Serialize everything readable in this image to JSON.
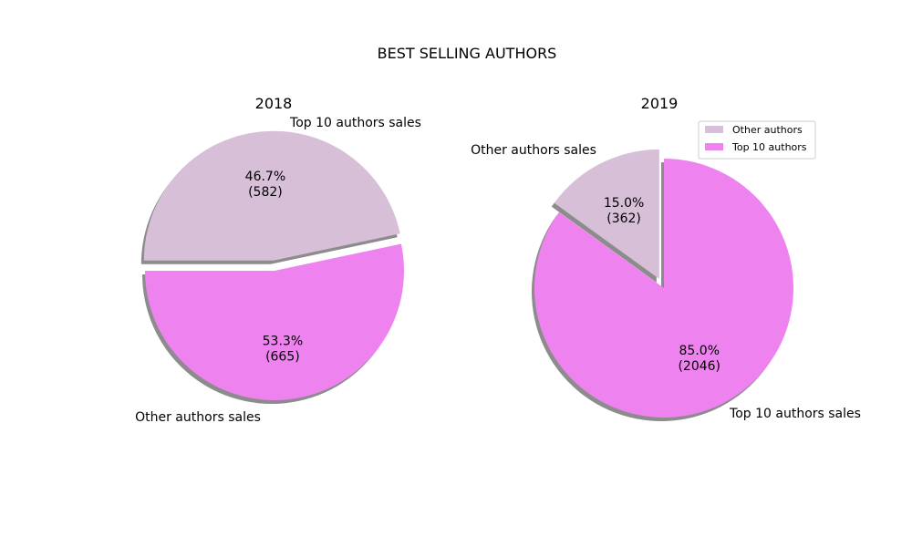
{
  "title": "BEST SELLING AUTHORS",
  "colors": {
    "top10": "#ee82ee",
    "other": "#d8bfd8",
    "shadow": "#000000"
  },
  "chart_data": [
    {
      "type": "pie",
      "title": "2018",
      "categories": [
        "Top 10 authors sales",
        "Other authors sales"
      ],
      "values": [
        665,
        582
      ],
      "percent_labels": [
        "53.3%",
        "46.7%"
      ],
      "count_labels": [
        "(665)",
        "(582)"
      ],
      "exploded": [
        false,
        true
      ],
      "shadow": true
    },
    {
      "type": "pie",
      "title": "2019",
      "categories": [
        "Other authors sales",
        "Top 10 authors sales"
      ],
      "values": [
        362,
        2046
      ],
      "percent_labels": [
        "15.0%",
        "85.0%"
      ],
      "count_labels": [
        "(362)",
        "(2046)"
      ],
      "exploded": [
        true,
        false
      ],
      "shadow": true,
      "legend": {
        "placement": "upper-right",
        "entries": [
          "Other authors",
          "Top 10 authors"
        ]
      }
    }
  ]
}
